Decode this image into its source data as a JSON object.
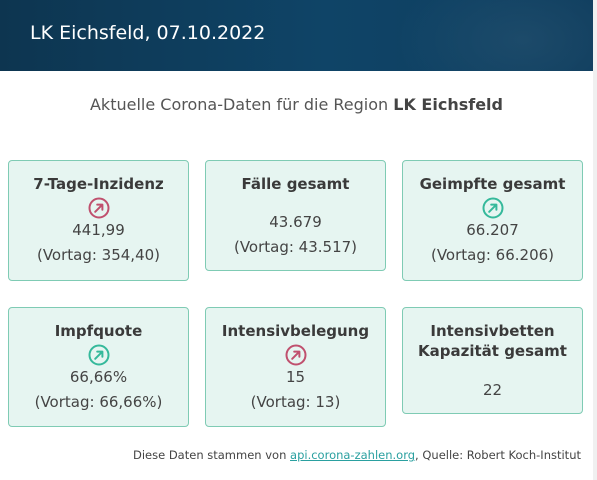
{
  "header": {
    "title": "LK Eichsfeld, 07.10.2022"
  },
  "subtitle": {
    "prefix": "Aktuelle Corona-Daten für die Region ",
    "region": "LK Eichsfeld"
  },
  "cards": [
    {
      "title": "7-Tage-Inzidenz",
      "trend": "up-right-arrow-icon",
      "trend_color": "#c0506e",
      "value": "441,99",
      "previous": "(Vortag: 354,40)"
    },
    {
      "title": "Fälle gesamt",
      "value": "43.679",
      "previous": "(Vortag: 43.517)"
    },
    {
      "title": "Geimpfte gesamt",
      "trend": "up-right-arrow-icon",
      "trend_color": "#35b99b",
      "value": "66.207",
      "previous": "(Vortag: 66.206)"
    },
    {
      "title": "Impfquote",
      "trend": "up-right-arrow-icon",
      "trend_color": "#35b99b",
      "value": "66,66%",
      "previous": "(Vortag: 66,66%)"
    },
    {
      "title": "Intensivbelegung",
      "trend": "up-right-arrow-icon",
      "trend_color": "#c0506e",
      "value": "15",
      "previous": "(Vortag: 13)"
    },
    {
      "title_line1": "Intensivbetten",
      "title_line2": "Kapazität gesamt",
      "value": "22"
    }
  ],
  "footer": {
    "prefix": "Diese Daten stammen von ",
    "link": "api.corona-zahlen.org",
    "suffix": ", Quelle: Robert Koch-Institut"
  }
}
